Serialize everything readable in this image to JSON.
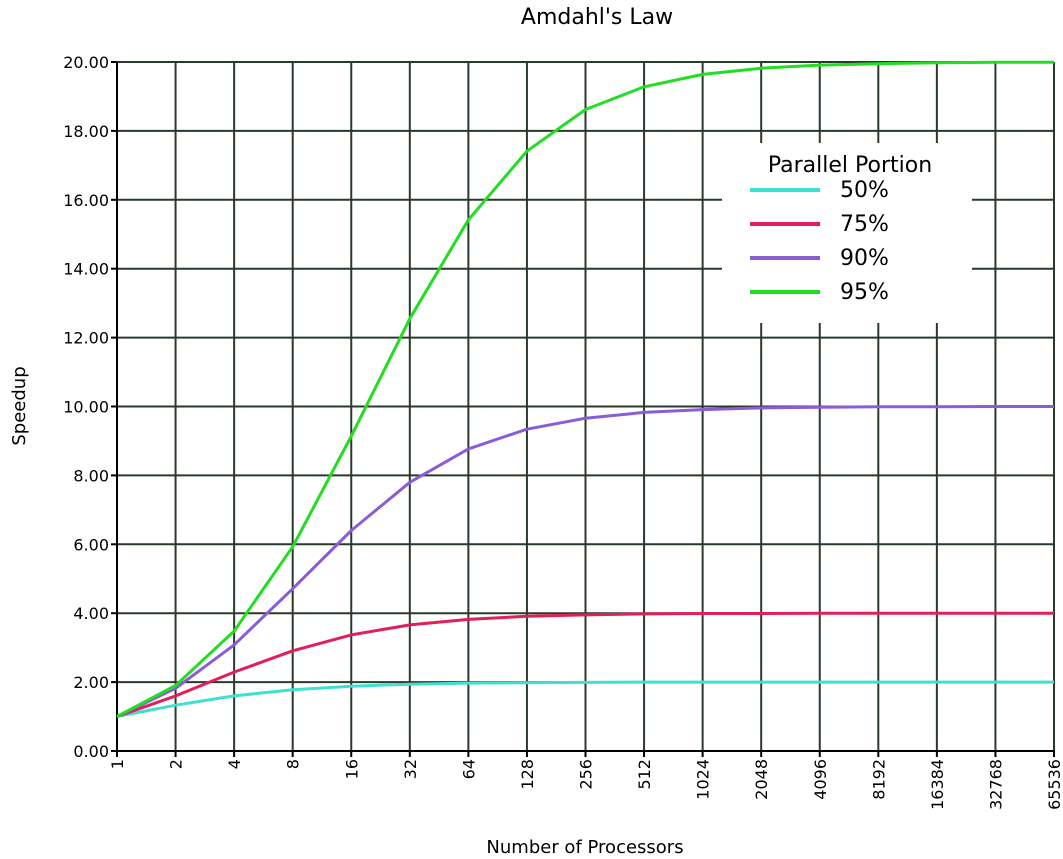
{
  "chart_data": {
    "type": "line",
    "title": "Amdahl's Law",
    "xlabel": "Number of Processors",
    "ylabel": "Speedup",
    "x": [
      1,
      2,
      4,
      8,
      16,
      32,
      64,
      128,
      256,
      512,
      1024,
      2048,
      4096,
      8192,
      16384,
      32768,
      65536
    ],
    "x_tick_labels": [
      "1",
      "2",
      "4",
      "8",
      "16",
      "32",
      "64",
      "128",
      "256",
      "512",
      "1024",
      "2048",
      "4096",
      "8192",
      "16384",
      "32768",
      "65536"
    ],
    "x_scale": "log2",
    "ylim": [
      0,
      20
    ],
    "y_ticks": [
      0,
      2,
      4,
      6,
      8,
      10,
      12,
      14,
      16,
      18,
      20
    ],
    "y_tick_labels": [
      "0.00",
      "2.00",
      "4.00",
      "6.00",
      "8.00",
      "10.00",
      "12.00",
      "14.00",
      "16.00",
      "18.00",
      "20.00"
    ],
    "grid": true,
    "legend": {
      "title": "Parallel Portion",
      "position": "top-right"
    },
    "series": [
      {
        "name": "50%",
        "color": "#40e0d0",
        "values": [
          1.0,
          1.33,
          1.6,
          1.78,
          1.88,
          1.94,
          1.97,
          1.98,
          1.99,
          2.0,
          2.0,
          2.0,
          2.0,
          2.0,
          2.0,
          2.0,
          2.0
        ]
      },
      {
        "name": "75%",
        "color": "#e0205a",
        "values": [
          1.0,
          1.6,
          2.29,
          2.91,
          3.37,
          3.66,
          3.82,
          3.91,
          3.95,
          3.98,
          3.99,
          3.99,
          4.0,
          4.0,
          4.0,
          4.0,
          4.0
        ]
      },
      {
        "name": "90%",
        "color": "#8a5cd6",
        "values": [
          1.0,
          1.82,
          3.08,
          4.71,
          6.4,
          7.8,
          8.77,
          9.34,
          9.66,
          9.83,
          9.91,
          9.96,
          9.98,
          9.99,
          9.99,
          10.0,
          10.0
        ]
      },
      {
        "name": "95%",
        "color": "#22dd22",
        "values": [
          1.0,
          1.9,
          3.48,
          5.93,
          9.14,
          12.55,
          15.42,
          17.41,
          18.62,
          19.28,
          19.64,
          19.82,
          19.91,
          19.95,
          19.98,
          19.99,
          19.99
        ]
      }
    ]
  }
}
